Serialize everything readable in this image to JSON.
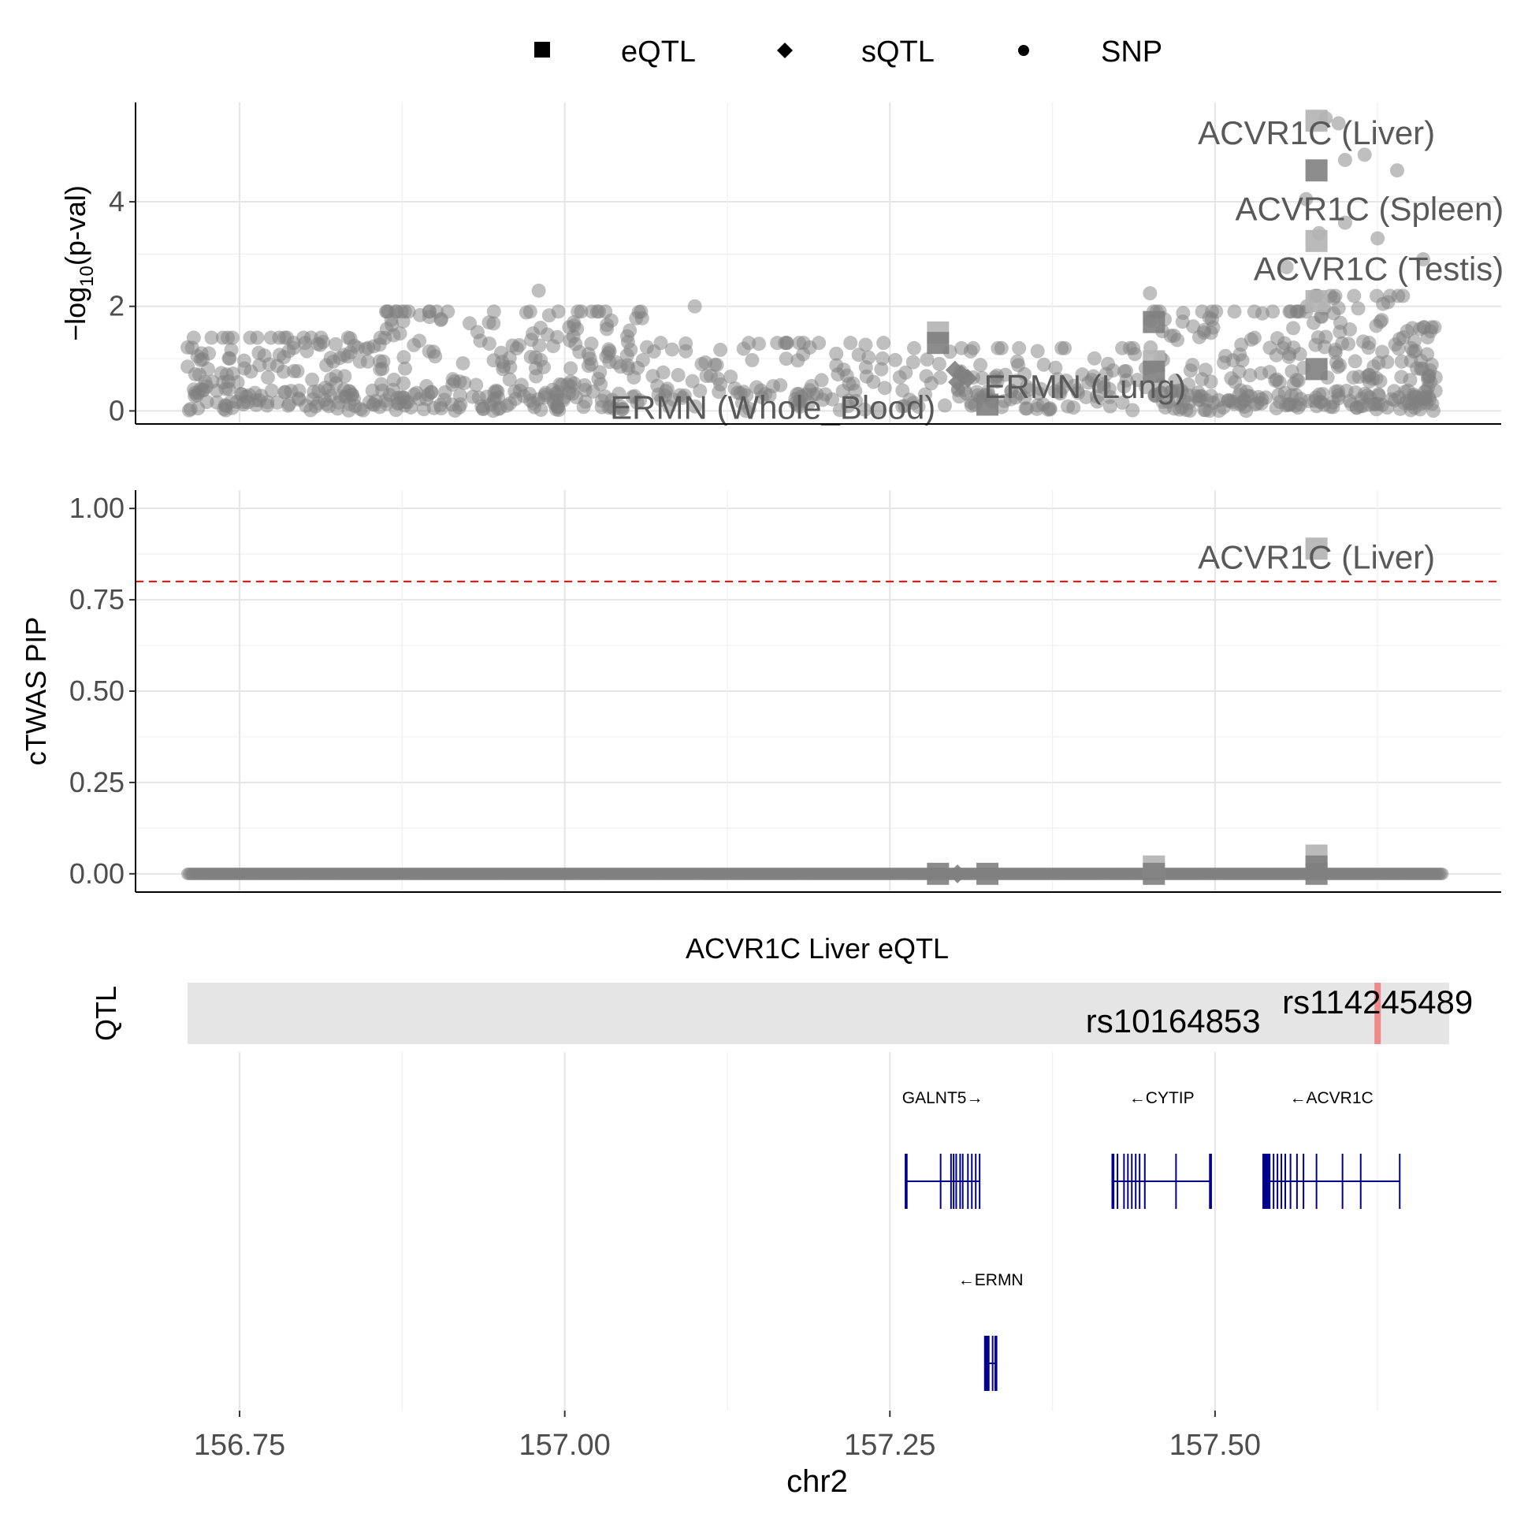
{
  "chart_data": {
    "type": "scatter",
    "xlabel": "chr2",
    "x_range": [
      156.67,
      157.72
    ],
    "x_ticks": [
      {
        "value": 156.75,
        "label": "156.75"
      },
      {
        "value": 157.0,
        "label": "157.00"
      },
      {
        "value": 157.25,
        "label": "157.25"
      },
      {
        "value": 157.5,
        "label": "157.50"
      }
    ],
    "legend": {
      "position": "top",
      "entries": [
        {
          "label": "eQTL",
          "shape": "square"
        },
        {
          "label": "sQTL",
          "shape": "diamond"
        },
        {
          "label": "SNP",
          "shape": "circle"
        }
      ]
    },
    "colors": {
      "point": "#808080",
      "highlight": "#b3b3b3",
      "threshold": "#ff0000",
      "gene": "#00008b",
      "qtl_band": "#e5e5e5",
      "qtl_mark": "#f08080"
    },
    "panel_pval": {
      "ylabel": "-log10(p-val)",
      "ylabel_parts": {
        "pre": "−log",
        "sub": "10",
        "post": "(p-val)"
      },
      "ylim": [
        -0.25,
        5.9
      ],
      "y_ticks": [
        {
          "value": 0,
          "label": "0"
        },
        {
          "value": 2,
          "label": "2"
        },
        {
          "value": 4,
          "label": "4"
        }
      ],
      "snp_regions": [
        {
          "x0": 156.71,
          "x1": 156.86,
          "n": 170,
          "ymax": 1.4
        },
        {
          "x0": 156.86,
          "x1": 157.06,
          "n": 230,
          "ymax": 1.9
        },
        {
          "x0": 157.06,
          "x1": 157.25,
          "n": 110,
          "ymax": 1.3
        },
        {
          "x0": 157.25,
          "x1": 157.45,
          "n": 120,
          "ymax": 1.2
        },
        {
          "x0": 157.45,
          "x1": 157.57,
          "n": 150,
          "ymax": 1.9
        },
        {
          "x0": 157.57,
          "x1": 157.65,
          "n": 110,
          "ymax": 2.2
        },
        {
          "x0": 157.65,
          "x1": 157.67,
          "n": 50,
          "ymax": 1.6
        }
      ],
      "snp_highlights": [
        {
          "x": 156.98,
          "y": 2.3
        },
        {
          "x": 157.1,
          "y": 2.0
        },
        {
          "x": 157.45,
          "y": 2.25
        },
        {
          "x": 157.585,
          "y": 5.6
        },
        {
          "x": 157.595,
          "y": 5.5
        },
        {
          "x": 157.6,
          "y": 4.8
        },
        {
          "x": 157.615,
          "y": 4.9
        },
        {
          "x": 157.64,
          "y": 4.6
        },
        {
          "x": 157.58,
          "y": 3.4
        },
        {
          "x": 157.6,
          "y": 3.6
        },
        {
          "x": 157.625,
          "y": 3.3
        },
        {
          "x": 157.66,
          "y": 2.9
        },
        {
          "x": 157.555,
          "y": 2.75
        },
        {
          "x": 157.57,
          "y": 4.05
        }
      ],
      "gene_points": [
        {
          "x": 157.578,
          "y": 5.55,
          "shape": "square",
          "shade": "light"
        },
        {
          "x": 157.578,
          "y": 4.6,
          "shape": "square",
          "shade": "dark"
        },
        {
          "x": 157.578,
          "y": 3.25,
          "shape": "square",
          "shade": "light"
        },
        {
          "x": 157.578,
          "y": 2.1,
          "shape": "square",
          "shade": "light"
        },
        {
          "x": 157.578,
          "y": 0.8,
          "shape": "square",
          "shade": "dark"
        },
        {
          "x": 157.287,
          "y": 1.5,
          "shape": "square",
          "shade": "light"
        },
        {
          "x": 157.287,
          "y": 1.3,
          "shape": "square",
          "shade": "dark"
        },
        {
          "x": 157.325,
          "y": 0.12,
          "shape": "square",
          "shade": "dark"
        },
        {
          "x": 157.453,
          "y": 1.7,
          "shape": "square",
          "shade": "dark"
        },
        {
          "x": 157.453,
          "y": 0.95,
          "shape": "square",
          "shade": "light"
        },
        {
          "x": 157.453,
          "y": 0.75,
          "shape": "square",
          "shade": "dark"
        },
        {
          "x": 157.3,
          "y": 0.78,
          "shape": "diamond",
          "shade": "dark"
        },
        {
          "x": 157.305,
          "y": 0.7,
          "shape": "diamond",
          "shade": "dark"
        },
        {
          "x": 157.31,
          "y": 0.62,
          "shape": "diamond",
          "shade": "dark"
        },
        {
          "x": 157.302,
          "y": 0.55,
          "shape": "diamond",
          "shade": "dark"
        }
      ],
      "labels": [
        {
          "text": "ACVR1C (Liver)",
          "x": 157.578,
          "y": 5.1,
          "anchor": "middle"
        },
        {
          "text": "ACVR1C (Spleen)",
          "x": 157.722,
          "y": 3.65,
          "anchor": "end"
        },
        {
          "text": "ACVR1C (Testis)",
          "x": 157.722,
          "y": 2.5,
          "anchor": "end"
        },
        {
          "text": "ERMN (Lung)",
          "x": 157.4,
          "y": 0.25,
          "anchor": "middle"
        },
        {
          "text": "ERMN (Whole_Blood)",
          "x": 157.16,
          "y": -0.15,
          "anchor": "middle"
        }
      ]
    },
    "panel_pip": {
      "ylabel": "cTWAS PIP",
      "ylim": [
        -0.05,
        1.05
      ],
      "y_ticks": [
        {
          "value": 0,
          "label": "0.00"
        },
        {
          "value": 0.25,
          "label": "0.25"
        },
        {
          "value": 0.5,
          "label": "0.50"
        },
        {
          "value": 0.75,
          "label": "0.75"
        },
        {
          "value": 1.0,
          "label": "1.00"
        }
      ],
      "threshold": 0.8,
      "gene_points": [
        {
          "x": 157.578,
          "y": 0.89,
          "shape": "square",
          "shade": "light"
        },
        {
          "x": 157.578,
          "y": 0.05,
          "shape": "square",
          "shade": "light"
        },
        {
          "x": 157.578,
          "y": 0.02,
          "shape": "square",
          "shade": "dark"
        },
        {
          "x": 157.578,
          "y": 0.0,
          "shape": "square",
          "shade": "dark"
        },
        {
          "x": 157.453,
          "y": 0.02,
          "shape": "square",
          "shade": "light"
        },
        {
          "x": 157.453,
          "y": 0.0,
          "shape": "square",
          "shade": "dark"
        },
        {
          "x": 157.287,
          "y": 0.0,
          "shape": "square",
          "shade": "dark"
        },
        {
          "x": 157.325,
          "y": 0.0,
          "shape": "square",
          "shade": "dark"
        },
        {
          "x": 157.302,
          "y": 0.0,
          "shape": "diamond",
          "shade": "dark"
        }
      ],
      "labels": [
        {
          "text": "ACVR1C (Liver)",
          "x": 157.578,
          "y": 0.835,
          "anchor": "middle"
        }
      ]
    },
    "qtl_track": {
      "title": "ACVR1C Liver eQTL",
      "ylabel": "QTL",
      "band": [
        156.71,
        157.68
      ],
      "snps": [
        {
          "label": "rs114245489",
          "x": 157.625,
          "highlight": true,
          "anchor": "middle",
          "row": "top"
        },
        {
          "label": "rs10164853",
          "x": 157.535,
          "highlight": false,
          "anchor": "end",
          "row": "bottom"
        }
      ]
    },
    "genes": [
      {
        "name": "GALNT5→",
        "start": 157.262,
        "end": 157.319,
        "row": 0,
        "exons": [
          157.262,
          157.263,
          157.289,
          157.297,
          157.299,
          157.301,
          157.304,
          157.306,
          157.31,
          157.313,
          157.316,
          157.319
        ]
      },
      {
        "name": "←CYTIP",
        "start": 157.421,
        "end": 157.497,
        "row": 0,
        "exons": [
          157.421,
          157.422,
          157.425,
          157.43,
          157.433,
          157.436,
          157.439,
          157.442,
          157.446,
          157.47,
          157.496,
          157.497
        ]
      },
      {
        "name": "←ACVR1C",
        "start": 157.537,
        "end": 157.642,
        "row": 0,
        "exons": [
          157.537,
          157.538,
          157.539,
          157.54,
          157.541,
          157.542,
          157.545,
          157.548,
          157.551,
          157.554,
          157.558,
          157.563,
          157.568,
          157.578,
          157.598,
          157.612,
          157.642
        ]
      },
      {
        "name": "←ERMN",
        "start": 157.323,
        "end": 157.332,
        "row": 1,
        "exons": [
          157.323,
          157.324,
          157.325,
          157.326,
          157.329,
          157.331,
          157.332
        ]
      }
    ]
  }
}
